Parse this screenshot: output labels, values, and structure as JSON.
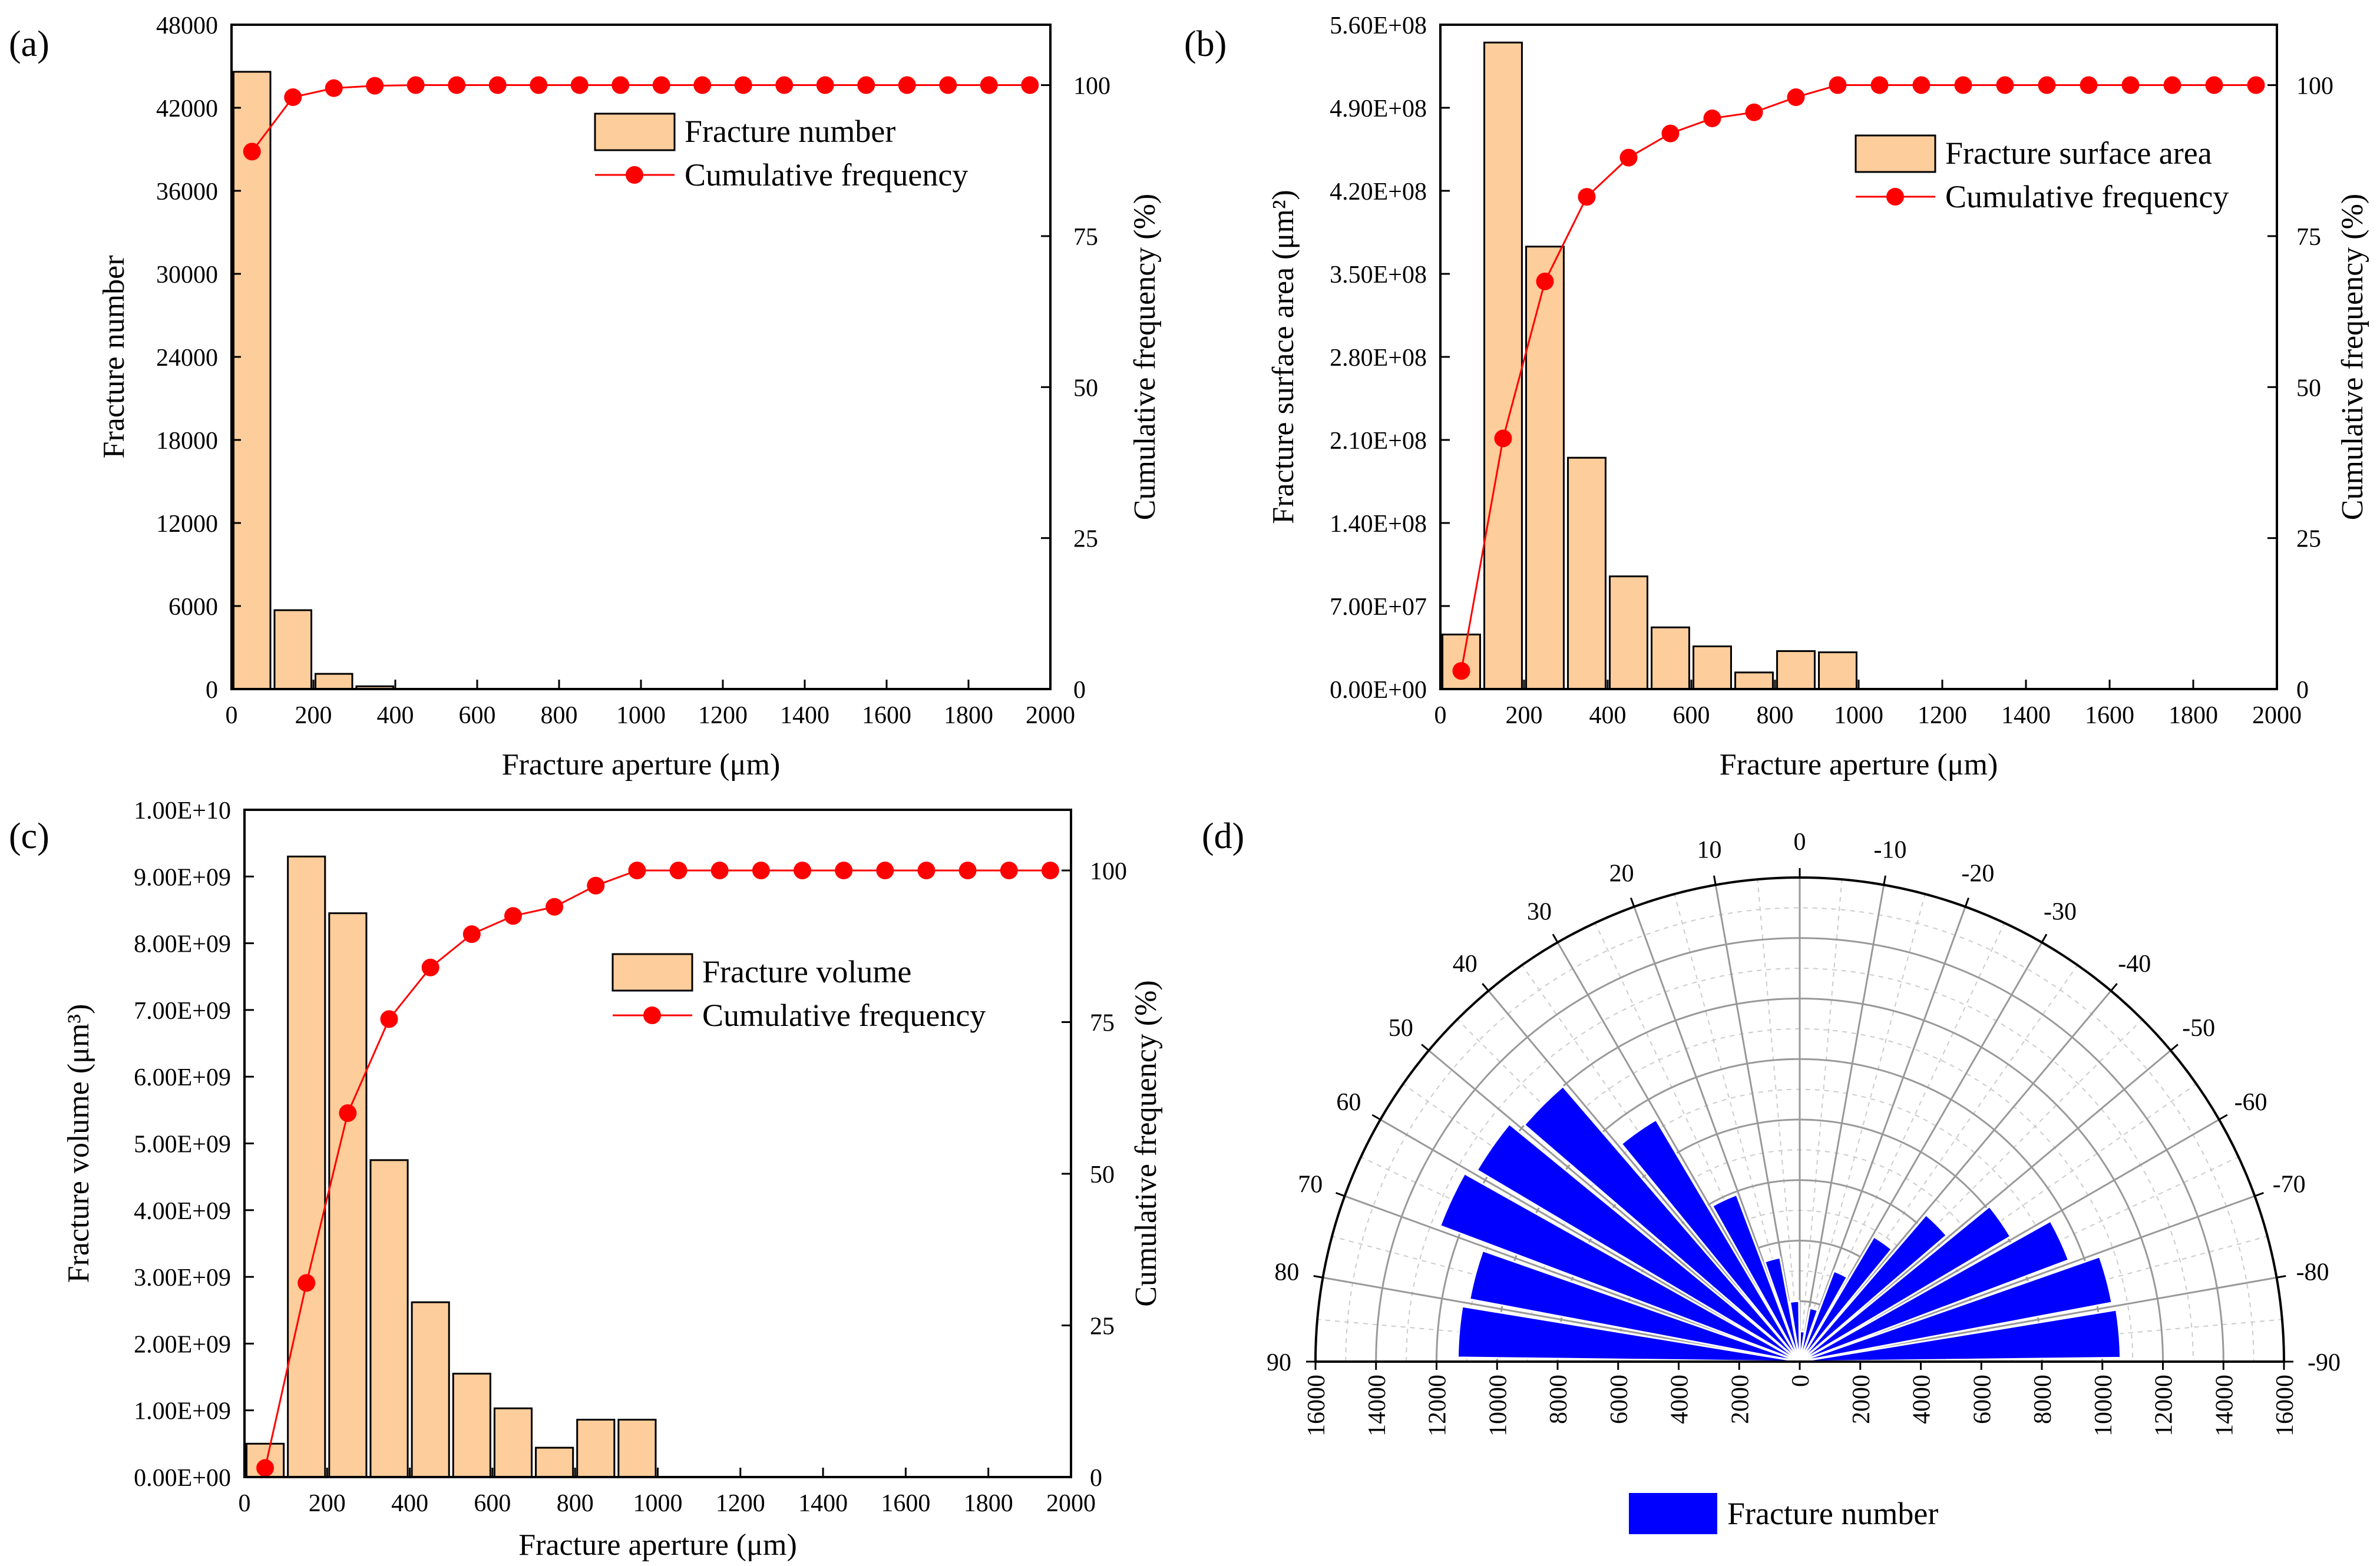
{
  "colors": {
    "bar": "#fdcd9b",
    "bar_edge": "#000000",
    "line": "#ff0000",
    "rose": "#0000ff",
    "grid": "#bbbbbb"
  },
  "chart_data": [
    {
      "id": "a",
      "panel_label": "(a)",
      "type": "bar",
      "x": [
        50,
        150,
        250,
        350,
        450,
        550,
        650,
        750,
        850,
        950,
        1050,
        1150,
        1250,
        1350,
        1450,
        1550,
        1650,
        1750,
        1850,
        1950
      ],
      "xlabel": "Fracture aperture (μm)",
      "xlim": [
        0,
        2000
      ],
      "xticks": [
        0,
        200,
        400,
        600,
        800,
        1000,
        1200,
        1400,
        1600,
        1800,
        2000
      ],
      "ylabel": "Fracture number",
      "ylim": [
        0,
        48000
      ],
      "yticks": [
        "0",
        "6000",
        "12000",
        "18000",
        "24000",
        "30000",
        "36000",
        "42000",
        "48000"
      ],
      "y2label": "Cumulative frequency (%)",
      "y2lim": [
        0,
        110
      ],
      "y2ticks": [
        0,
        25,
        50,
        75,
        100
      ],
      "series": [
        {
          "name": "Fracture number",
          "type": "bar",
          "values": [
            44600,
            5700,
            1100,
            200,
            0,
            0,
            0,
            0,
            0,
            0,
            0,
            0,
            0,
            0,
            0,
            0,
            0,
            0,
            0,
            0
          ]
        },
        {
          "name": "Cumulative frequency",
          "type": "line",
          "axis": "right",
          "values": [
            89,
            98,
            99.5,
            99.9,
            100,
            100,
            100,
            100,
            100,
            100,
            100,
            100,
            100,
            100,
            100,
            100,
            100,
            100,
            100,
            100
          ]
        }
      ]
    },
    {
      "id": "b",
      "panel_label": "(b)",
      "type": "bar",
      "x": [
        50,
        150,
        250,
        350,
        450,
        550,
        650,
        750,
        850,
        950,
        1050,
        1150,
        1250,
        1350,
        1450,
        1550,
        1650,
        1750,
        1850,
        1950
      ],
      "xlabel": "Fracture aperture (μm)",
      "xlim": [
        0,
        2000
      ],
      "xticks": [
        0,
        200,
        400,
        600,
        800,
        1000,
        1200,
        1400,
        1600,
        1800,
        2000
      ],
      "ylabel": "Fracture surface area (μm²)",
      "ylim": [
        0,
        560000000
      ],
      "yticks": [
        "0.00E+00",
        "7.00E+07",
        "1.40E+08",
        "2.10E+08",
        "2.80E+08",
        "3.50E+08",
        "4.20E+08",
        "4.90E+08",
        "5.60E+08"
      ],
      "y2label": "Cumulative frequency (%)",
      "y2lim": [
        0,
        110
      ],
      "y2ticks": [
        0,
        25,
        50,
        75,
        100
      ],
      "series": [
        {
          "name": "Fracture surface area",
          "type": "bar",
          "values": [
            46000000,
            545000000,
            373000000,
            195000000,
            95000000,
            52000000,
            36000000,
            14000000,
            32000000,
            31000000,
            0,
            0,
            0,
            0,
            0,
            0,
            0,
            0,
            0,
            0
          ]
        },
        {
          "name": "Cumulative frequency",
          "type": "line",
          "axis": "right",
          "values": [
            3,
            41.5,
            67.5,
            81.5,
            88,
            92,
            94.5,
            95.5,
            98,
            100,
            100,
            100,
            100,
            100,
            100,
            100,
            100,
            100,
            100,
            100
          ]
        }
      ]
    },
    {
      "id": "c",
      "panel_label": "(c)",
      "type": "bar",
      "x": [
        50,
        150,
        250,
        350,
        450,
        550,
        650,
        750,
        850,
        950,
        1050,
        1150,
        1250,
        1350,
        1450,
        1550,
        1650,
        1750,
        1850,
        1950
      ],
      "xlabel": "Fracture aperture (μm)",
      "xlim": [
        0,
        2000
      ],
      "xticks": [
        0,
        200,
        400,
        600,
        800,
        1000,
        1200,
        1400,
        1600,
        1800,
        2000
      ],
      "ylabel": "Fracture volume (μm³)",
      "ylim": [
        0,
        10000000000
      ],
      "yticks": [
        "0.00E+00",
        "1.00E+09",
        "2.00E+09",
        "3.00E+09",
        "4.00E+09",
        "5.00E+09",
        "6.00E+09",
        "7.00E+09",
        "8.00E+09",
        "9.00E+09",
        "1.00E+10"
      ],
      "y2label": "Cumulative frequency (%)",
      "y2lim": [
        0,
        110
      ],
      "y2ticks": [
        0,
        25,
        50,
        75,
        100
      ],
      "series": [
        {
          "name": "Fracture volume",
          "type": "bar",
          "values": [
            500000000,
            9300000000,
            8450000000,
            4750000000,
            2620000000,
            1550000000,
            1030000000,
            440000000,
            860000000,
            860000000,
            0,
            0,
            0,
            0,
            0,
            0,
            0,
            0,
            0,
            0
          ]
        },
        {
          "name": "Cumulative frequency",
          "type": "line",
          "axis": "right",
          "values": [
            1.5,
            32,
            60,
            75.5,
            84,
            89.5,
            92.5,
            94,
            97.5,
            100,
            100,
            100,
            100,
            100,
            100,
            100,
            100,
            100,
            100,
            100
          ]
        }
      ]
    },
    {
      "id": "d",
      "panel_label": "(d)",
      "type": "polar-bar",
      "angles": [
        85,
        75,
        65,
        55,
        45,
        35,
        25,
        15,
        5,
        -5,
        -15,
        -25,
        -35,
        -45,
        -55,
        -65,
        -75,
        -85
      ],
      "values": [
        11300,
        11100,
        12700,
        12400,
        12000,
        9300,
        5900,
        3500,
        2000,
        1000,
        1800,
        3200,
        4800,
        6400,
        8100,
        9500,
        10500,
        10600
      ],
      "rlim": [
        0,
        16000
      ],
      "angle_ticks": [
        "90",
        "80",
        "70",
        "60",
        "50",
        "40",
        "30",
        "20",
        "10",
        "0",
        "-10",
        "-20",
        "-30",
        "-40",
        "-50",
        "-60",
        "-70",
        "-80",
        "-90"
      ],
      "radial_ticks_left": [
        "16000",
        "14000",
        "12000",
        "10000",
        "8000",
        "6000",
        "4000",
        "2000",
        "0"
      ],
      "radial_ticks_right": [
        "2000",
        "4000",
        "6000",
        "8000",
        "10000",
        "12000",
        "14000",
        "16000"
      ],
      "legend": "Fracture number"
    }
  ]
}
